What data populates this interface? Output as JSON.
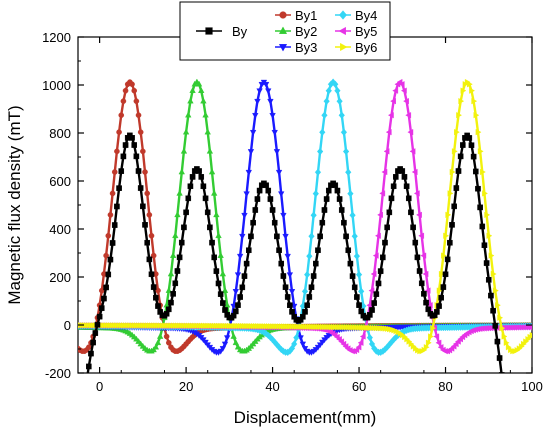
{
  "chart_data": {
    "type": "line",
    "title": "",
    "xlabel": "Displacement(mm)",
    "ylabel": "Magnetic flux density (mT)",
    "xlim": [
      -5,
      100
    ],
    "ylim": [
      -200,
      1200
    ],
    "xticks": [
      0,
      20,
      40,
      60,
      80,
      100
    ],
    "yticks": [
      -200,
      0,
      200,
      400,
      600,
      800,
      1000,
      1200
    ],
    "grid": false,
    "legend_position": "top-right",
    "x_step": 0.5,
    "series": [
      {
        "name": "By",
        "color": "#000000",
        "marker": "square",
        "peaks": [
          [
            7,
            790
          ],
          [
            22.5,
            650
          ],
          [
            38,
            590
          ],
          [
            54,
            590
          ],
          [
            69.5,
            650
          ],
          [
            85,
            790
          ]
        ],
        "sigma": 3.1,
        "min": -200
      },
      {
        "name": "By1",
        "color": "#c0392b",
        "marker": "circle",
        "peak_x": 7,
        "peak_y": 1040,
        "sigma": 3.8,
        "neg_depth": 120
      },
      {
        "name": "By2",
        "color": "#33cc33",
        "marker": "triangle-up",
        "peak_x": 22.5,
        "peak_y": 1040,
        "sigma": 3.8,
        "neg_depth": 120
      },
      {
        "name": "By3",
        "color": "#1a1aff",
        "marker": "triangle-down",
        "peak_x": 38,
        "peak_y": 1040,
        "sigma": 3.8,
        "neg_depth": 125
      },
      {
        "name": "By4",
        "color": "#33d6f5",
        "marker": "diamond",
        "peak_x": 54,
        "peak_y": 1040,
        "sigma": 3.8,
        "neg_depth": 125
      },
      {
        "name": "By5",
        "color": "#e633e6",
        "marker": "triangle-left",
        "peak_x": 69.5,
        "peak_y": 1040,
        "sigma": 3.8,
        "neg_depth": 120
      },
      {
        "name": "By6",
        "color": "#f2f20d",
        "marker": "triangle-right",
        "peak_x": 85,
        "peak_y": 1040,
        "sigma": 3.8,
        "neg_depth": 120
      }
    ]
  }
}
